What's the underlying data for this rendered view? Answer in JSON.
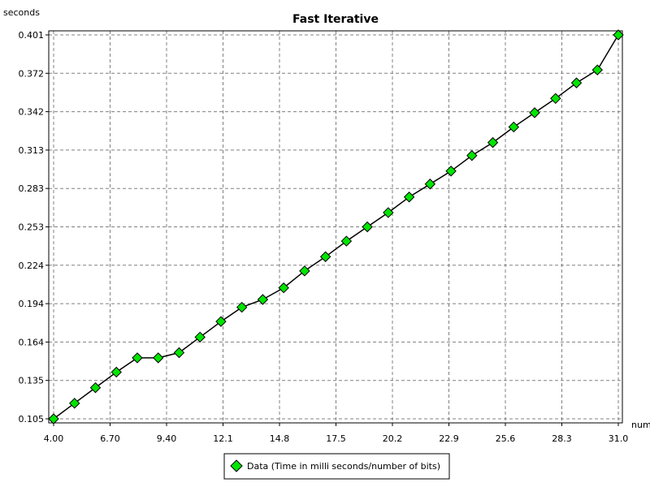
{
  "chart_data": {
    "type": "line",
    "title": "Fast Iterative",
    "xlabel": "num",
    "ylabel": "seconds",
    "xlim": [
      4.0,
      31.0
    ],
    "ylim": [
      0.105,
      0.401
    ],
    "x_ticks": [
      "4.00",
      "6.70",
      "9.40",
      "12.1",
      "14.8",
      "17.5",
      "20.2",
      "22.9",
      "25.6",
      "28.3",
      "31.0"
    ],
    "y_ticks": [
      "0.105",
      "0.135",
      "0.164",
      "0.194",
      "0.224",
      "0.253",
      "0.283",
      "0.313",
      "0.342",
      "0.372",
      "0.401"
    ],
    "grid": true,
    "legend": "bottom-center",
    "colors": {
      "marker_fill": "#00e600",
      "line": "#000000",
      "grid": "#808080"
    },
    "series": [
      {
        "name": "Data (Time in milli seconds/number of bits)",
        "x": [
          4,
          5,
          6,
          7,
          8,
          9,
          10,
          11,
          12,
          13,
          14,
          15,
          16,
          17,
          18,
          19,
          20,
          21,
          22,
          23,
          24,
          25,
          26,
          27,
          28,
          29,
          30,
          31
        ],
        "y": [
          0.105,
          0.117,
          0.129,
          0.141,
          0.152,
          0.152,
          0.156,
          0.168,
          0.18,
          0.191,
          0.197,
          0.206,
          0.219,
          0.23,
          0.242,
          0.253,
          0.264,
          0.276,
          0.286,
          0.296,
          0.308,
          0.318,
          0.33,
          0.341,
          0.352,
          0.364,
          0.374,
          0.401
        ]
      }
    ]
  }
}
